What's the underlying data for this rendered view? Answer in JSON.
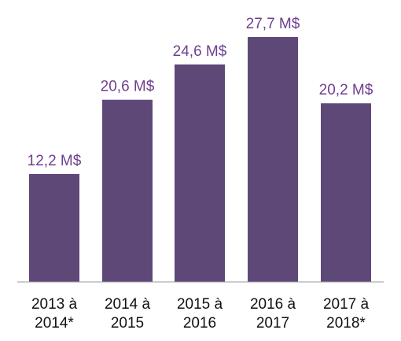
{
  "chart_data": {
    "type": "bar",
    "categories": [
      [
        "2013 à",
        "2014*"
      ],
      [
        "2014 à",
        "2015"
      ],
      [
        "2015 à",
        "2016"
      ],
      [
        "2016 à",
        "2017"
      ],
      [
        "2017 à",
        "2018*"
      ]
    ],
    "values": [
      12.2,
      20.6,
      24.6,
      27.7,
      20.2
    ],
    "data_labels": [
      "12,2 M$",
      "20,6 M$",
      "24,6 M$",
      "27,7 M$",
      "20,2 M$"
    ],
    "title": "",
    "xlabel": "",
    "ylabel": "",
    "ylim": [
      0,
      27.7
    ],
    "grid": false,
    "legend": "none",
    "colors": {
      "bar": "#5e4878",
      "data_label": "#6f3f8f",
      "axis": "#9a9a9a",
      "tick_text": "#111111"
    }
  }
}
